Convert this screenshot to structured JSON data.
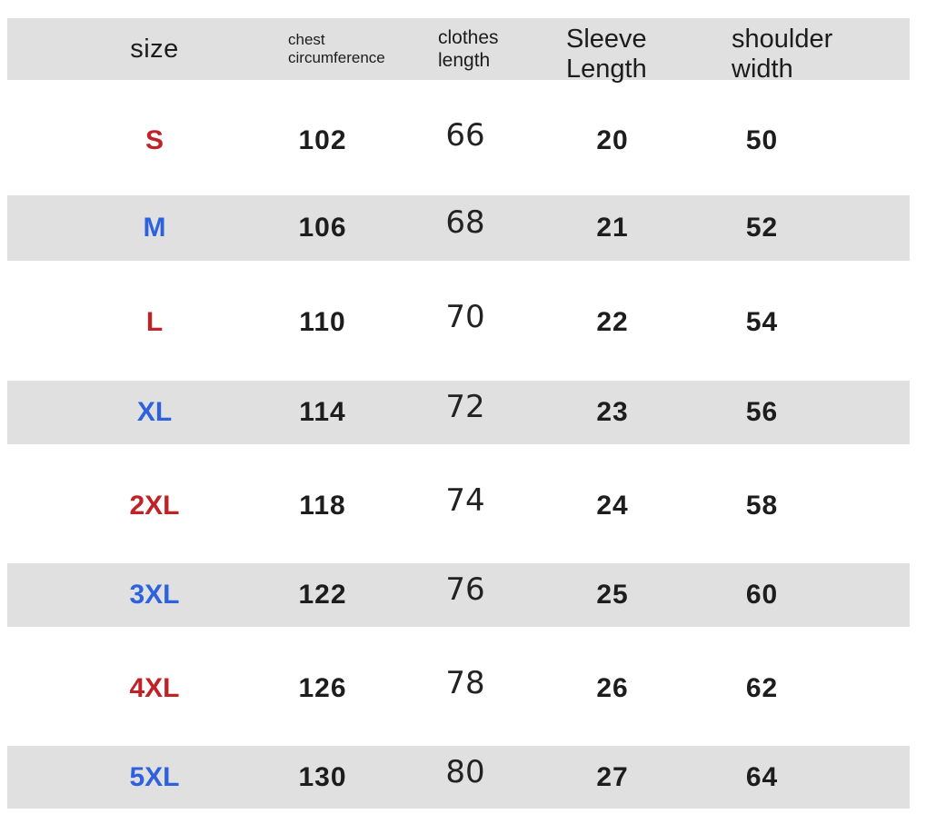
{
  "colors": {
    "red": "#bf2328",
    "blue": "#2e61dd",
    "band": "#e0e0e0",
    "text": "#1d1d1d"
  },
  "header": {
    "size": "size",
    "chest": [
      "chest",
      "circumference"
    ],
    "clothes": [
      "clothes",
      "length"
    ],
    "sleeve": [
      "Sleeve",
      "Length"
    ],
    "shoulder": [
      "shoulder",
      "width"
    ]
  },
  "rows": [
    {
      "size": "S",
      "chest": "102",
      "clothes": "66",
      "sleeve": "20",
      "shoulder": "50"
    },
    {
      "size": "M",
      "chest": "106",
      "clothes": "68",
      "sleeve": "21",
      "shoulder": "52"
    },
    {
      "size": "L",
      "chest": "110",
      "clothes": "70",
      "sleeve": "22",
      "shoulder": "54"
    },
    {
      "size": "XL",
      "chest": "114",
      "clothes": "72",
      "sleeve": "23",
      "shoulder": "56"
    },
    {
      "size": "2XL",
      "chest": "118",
      "clothes": "74",
      "sleeve": "24",
      "shoulder": "58"
    },
    {
      "size": "3XL",
      "chest": "122",
      "clothes": "76",
      "sleeve": "25",
      "shoulder": "60"
    },
    {
      "size": "4XL",
      "chest": "126",
      "clothes": "78",
      "sleeve": "26",
      "shoulder": "62"
    },
    {
      "size": "5XL",
      "chest": "130",
      "clothes": "80",
      "sleeve": "27",
      "shoulder": "64"
    }
  ],
  "chart_data": {
    "type": "table",
    "title": "Garment size chart",
    "columns": [
      "size",
      "chest circumference",
      "clothes length",
      "Sleeve Length",
      "shoulder width"
    ],
    "rows": [
      [
        "S",
        102,
        66,
        20,
        50
      ],
      [
        "M",
        106,
        68,
        21,
        52
      ],
      [
        "L",
        110,
        70,
        22,
        54
      ],
      [
        "XL",
        114,
        72,
        23,
        56
      ],
      [
        "2XL",
        118,
        74,
        24,
        58
      ],
      [
        "3XL",
        122,
        76,
        25,
        60
      ],
      [
        "4XL",
        126,
        78,
        26,
        62
      ],
      [
        "5XL",
        130,
        80,
        27,
        64
      ]
    ],
    "layout_hints": {
      "zebra_striping": "header, M, XL, 3XL, 5XL rows shaded gray",
      "size_label_colors": [
        "red",
        "blue",
        "red",
        "blue",
        "red",
        "blue",
        "red",
        "blue"
      ]
    }
  }
}
